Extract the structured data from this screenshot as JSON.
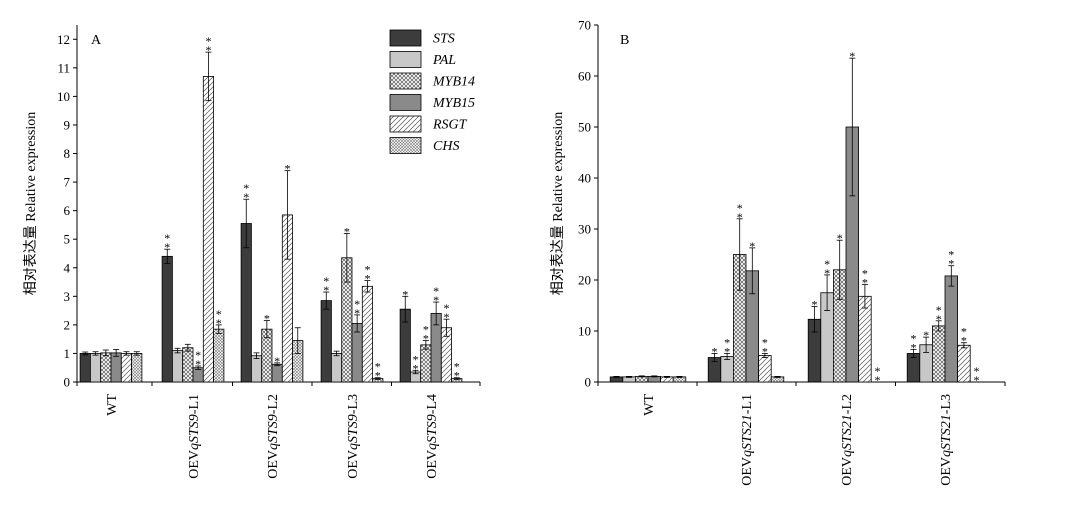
{
  "chart_data": [
    {
      "type": "bar",
      "panel_label": "A",
      "ylabel": "相对表达量 Relative expression",
      "ylim": [
        0,
        12.5
      ],
      "yticks": [
        0,
        1,
        2,
        3,
        4,
        5,
        6,
        7,
        8,
        9,
        10,
        11,
        12
      ],
      "categories": [
        "WT",
        "OEVqSTS9-L1",
        "OEVqSTS9-L2",
        "OEVqSTS9-L3",
        "OEVqSTS9-L4"
      ],
      "category_parts": [
        {
          "pre": "WT",
          "it": "",
          "post": ""
        },
        {
          "pre": "OEV",
          "it": "qSTS9",
          "post": "-L1"
        },
        {
          "pre": "OEV",
          "it": "qSTS9",
          "post": "-L2"
        },
        {
          "pre": "OEV",
          "it": "qSTS9",
          "post": "-L3"
        },
        {
          "pre": "OEV",
          "it": "qSTS9",
          "post": "-L4"
        }
      ],
      "legend_position": "top-right",
      "series": [
        {
          "name": "STS",
          "pattern": "dark",
          "values": [
            1.0,
            4.4,
            5.55,
            2.85,
            2.55
          ],
          "errors": [
            0.05,
            0.25,
            0.85,
            0.3,
            0.45
          ],
          "sig": [
            "",
            "**",
            "**",
            "**",
            "*"
          ]
        },
        {
          "name": "PAL",
          "pattern": "light",
          "values": [
            1.0,
            1.1,
            0.92,
            1.0,
            0.35
          ],
          "errors": [
            0.06,
            0.08,
            0.1,
            0.08,
            0.06
          ],
          "sig": [
            "",
            "",
            "",
            "",
            "**"
          ]
        },
        {
          "name": "MYB14",
          "pattern": "crosshatch",
          "values": [
            1.02,
            1.2,
            1.85,
            4.35,
            1.3
          ],
          "errors": [
            0.1,
            0.12,
            0.3,
            0.85,
            0.15
          ],
          "sig": [
            "",
            "",
            "*",
            "*",
            "**"
          ]
        },
        {
          "name": "MYB15",
          "pattern": "medium",
          "values": [
            1.02,
            0.5,
            0.62,
            2.05,
            2.4
          ],
          "errors": [
            0.12,
            0.06,
            0.05,
            0.3,
            0.4
          ],
          "sig": [
            "",
            "**",
            "*",
            "**",
            "**"
          ]
        },
        {
          "name": "RSGT",
          "pattern": "diagonal",
          "values": [
            1.0,
            10.7,
            5.85,
            3.35,
            1.9
          ],
          "errors": [
            0.06,
            0.85,
            1.55,
            0.2,
            0.3
          ],
          "sig": [
            "",
            "**",
            "*",
            "**",
            "**"
          ]
        },
        {
          "name": "CHS",
          "pattern": "smallcross",
          "values": [
            1.0,
            1.85,
            1.45,
            0.12,
            0.12
          ],
          "errors": [
            0.06,
            0.15,
            0.45,
            0.03,
            0.03
          ],
          "sig": [
            "",
            "**",
            "",
            "**",
            "**"
          ]
        }
      ]
    },
    {
      "type": "bar",
      "panel_label": "B",
      "ylabel": "相对表达量 Relative expression",
      "ylim": [
        0,
        70
      ],
      "yticks": [
        0,
        10,
        20,
        30,
        40,
        50,
        60,
        70
      ],
      "categories": [
        "WT",
        "OEVqSTS21-L1",
        "OEVqSTS21-L2",
        "OEVqSTS21-L3"
      ],
      "category_parts": [
        {
          "pre": "WT",
          "it": "",
          "post": ""
        },
        {
          "pre": "OEV",
          "it": "qSTS21",
          "post": "-L1"
        },
        {
          "pre": "OEV",
          "it": "qSTS21",
          "post": "-L2"
        },
        {
          "pre": "OEV",
          "it": "qSTS21",
          "post": "-L3"
        }
      ],
      "series": [
        {
          "name": "STS",
          "pattern": "dark",
          "values": [
            1.0,
            4.8,
            12.3,
            5.6
          ],
          "errors": [
            0.1,
            0.8,
            2.5,
            0.8
          ],
          "sig": [
            "",
            "*",
            "*",
            "**"
          ]
        },
        {
          "name": "PAL",
          "pattern": "light",
          "values": [
            1.0,
            5.0,
            17.5,
            7.3
          ],
          "errors": [
            0.1,
            0.6,
            3.5,
            1.5
          ],
          "sig": [
            "",
            "**",
            "**",
            "*"
          ]
        },
        {
          "name": "MYB14",
          "pattern": "crosshatch",
          "values": [
            1.1,
            25.0,
            22.0,
            11.0
          ],
          "errors": [
            0.1,
            7.0,
            5.8,
            1.0
          ],
          "sig": [
            "",
            "**",
            "*",
            "**"
          ]
        },
        {
          "name": "MYB15",
          "pattern": "medium",
          "values": [
            1.1,
            21.8,
            50.0,
            20.8
          ],
          "errors": [
            0.1,
            4.5,
            13.5,
            2.0
          ],
          "sig": [
            "",
            "*",
            "*",
            "**"
          ]
        },
        {
          "name": "RSGT",
          "pattern": "diagonal",
          "values": [
            1.0,
            5.2,
            16.8,
            7.2
          ],
          "errors": [
            0.1,
            0.4,
            2.3,
            0.5
          ],
          "sig": [
            "",
            "**",
            "**",
            "**"
          ]
        },
        {
          "name": "CHS",
          "pattern": "smallcross",
          "values": [
            1.0,
            1.0,
            0.0,
            0.0
          ],
          "errors": [
            0.1,
            0.1,
            0.0,
            0.0
          ],
          "sig": [
            "",
            "",
            "**",
            "**"
          ]
        }
      ]
    }
  ]
}
